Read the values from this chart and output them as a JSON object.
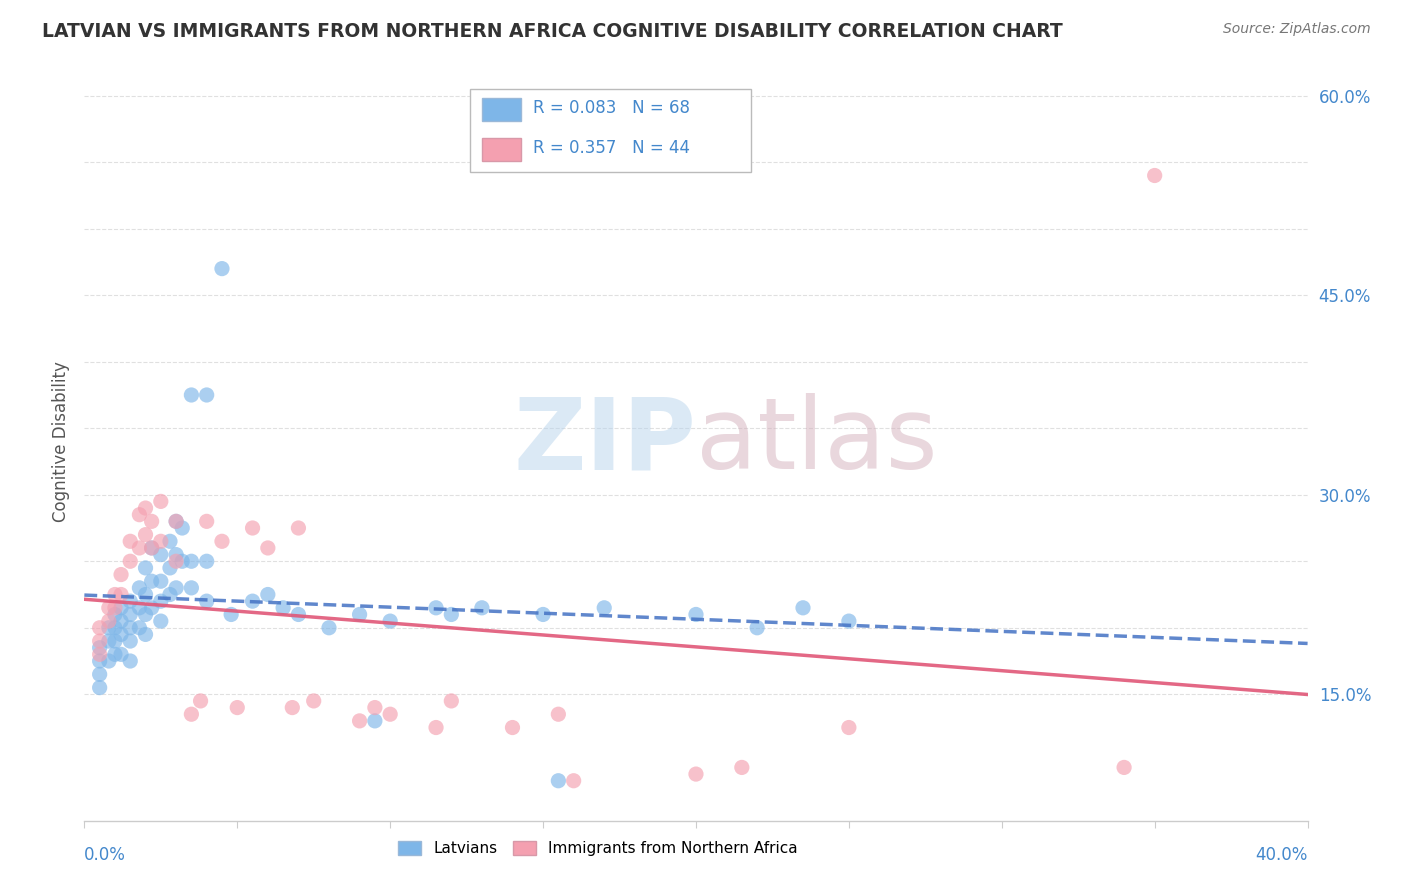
{
  "title": "LATVIAN VS IMMIGRANTS FROM NORTHERN AFRICA COGNITIVE DISABILITY CORRELATION CHART",
  "source": "Source: ZipAtlas.com",
  "ylabel": "Cognitive Disability",
  "xlim": [
    0.0,
    0.4
  ],
  "ylim": [
    0.055,
    0.625
  ],
  "latvian_color": "#7EB6E8",
  "latvian_line_color": "#4472C4",
  "immigrant_color": "#F4A0B0",
  "immigrant_line_color": "#E05878",
  "latvian_R": 0.083,
  "latvian_N": 68,
  "immigrant_R": 0.357,
  "immigrant_N": 44,
  "latvians_label": "Latvians",
  "immigrants_label": "Immigrants from Northern Africa",
  "background_color": "#FFFFFF",
  "grid_color": "#DDDDDD",
  "title_color": "#333333",
  "label_color": "#4488CC",
  "watermark_zip_color": "#B8D4EC",
  "watermark_atlas_color": "#D4B0BC",
  "latvian_scatter_x": [
    0.005,
    0.005,
    0.005,
    0.005,
    0.008,
    0.008,
    0.008,
    0.01,
    0.01,
    0.01,
    0.01,
    0.012,
    0.012,
    0.012,
    0.012,
    0.015,
    0.015,
    0.015,
    0.015,
    0.015,
    0.018,
    0.018,
    0.018,
    0.02,
    0.02,
    0.02,
    0.02,
    0.022,
    0.022,
    0.022,
    0.025,
    0.025,
    0.025,
    0.025,
    0.028,
    0.028,
    0.028,
    0.03,
    0.03,
    0.03,
    0.032,
    0.032,
    0.035,
    0.035,
    0.035,
    0.04,
    0.04,
    0.04,
    0.045,
    0.048,
    0.055,
    0.06,
    0.065,
    0.07,
    0.08,
    0.09,
    0.095,
    0.1,
    0.115,
    0.12,
    0.13,
    0.15,
    0.155,
    0.17,
    0.2,
    0.22,
    0.235,
    0.25
  ],
  "latvian_scatter_y": [
    0.185,
    0.175,
    0.165,
    0.155,
    0.2,
    0.19,
    0.175,
    0.21,
    0.2,
    0.19,
    0.18,
    0.215,
    0.205,
    0.195,
    0.18,
    0.22,
    0.21,
    0.2,
    0.19,
    0.175,
    0.23,
    0.215,
    0.2,
    0.245,
    0.225,
    0.21,
    0.195,
    0.26,
    0.235,
    0.215,
    0.255,
    0.235,
    0.22,
    0.205,
    0.265,
    0.245,
    0.225,
    0.28,
    0.255,
    0.23,
    0.275,
    0.25,
    0.375,
    0.25,
    0.23,
    0.375,
    0.25,
    0.22,
    0.47,
    0.21,
    0.22,
    0.225,
    0.215,
    0.21,
    0.2,
    0.21,
    0.13,
    0.205,
    0.215,
    0.21,
    0.215,
    0.21,
    0.085,
    0.215,
    0.21,
    0.2,
    0.215,
    0.205
  ],
  "immigrant_scatter_x": [
    0.005,
    0.005,
    0.005,
    0.008,
    0.008,
    0.01,
    0.01,
    0.012,
    0.012,
    0.015,
    0.015,
    0.018,
    0.018,
    0.02,
    0.02,
    0.022,
    0.022,
    0.025,
    0.025,
    0.03,
    0.03,
    0.035,
    0.038,
    0.04,
    0.045,
    0.05,
    0.055,
    0.06,
    0.068,
    0.07,
    0.075,
    0.09,
    0.095,
    0.1,
    0.115,
    0.12,
    0.14,
    0.155,
    0.16,
    0.2,
    0.215,
    0.25,
    0.34,
    0.35
  ],
  "immigrant_scatter_y": [
    0.2,
    0.19,
    0.18,
    0.215,
    0.205,
    0.225,
    0.215,
    0.24,
    0.225,
    0.265,
    0.25,
    0.285,
    0.26,
    0.29,
    0.27,
    0.28,
    0.26,
    0.295,
    0.265,
    0.28,
    0.25,
    0.135,
    0.145,
    0.28,
    0.265,
    0.14,
    0.275,
    0.26,
    0.14,
    0.275,
    0.145,
    0.13,
    0.14,
    0.135,
    0.125,
    0.145,
    0.125,
    0.135,
    0.085,
    0.09,
    0.095,
    0.125,
    0.095,
    0.54
  ]
}
